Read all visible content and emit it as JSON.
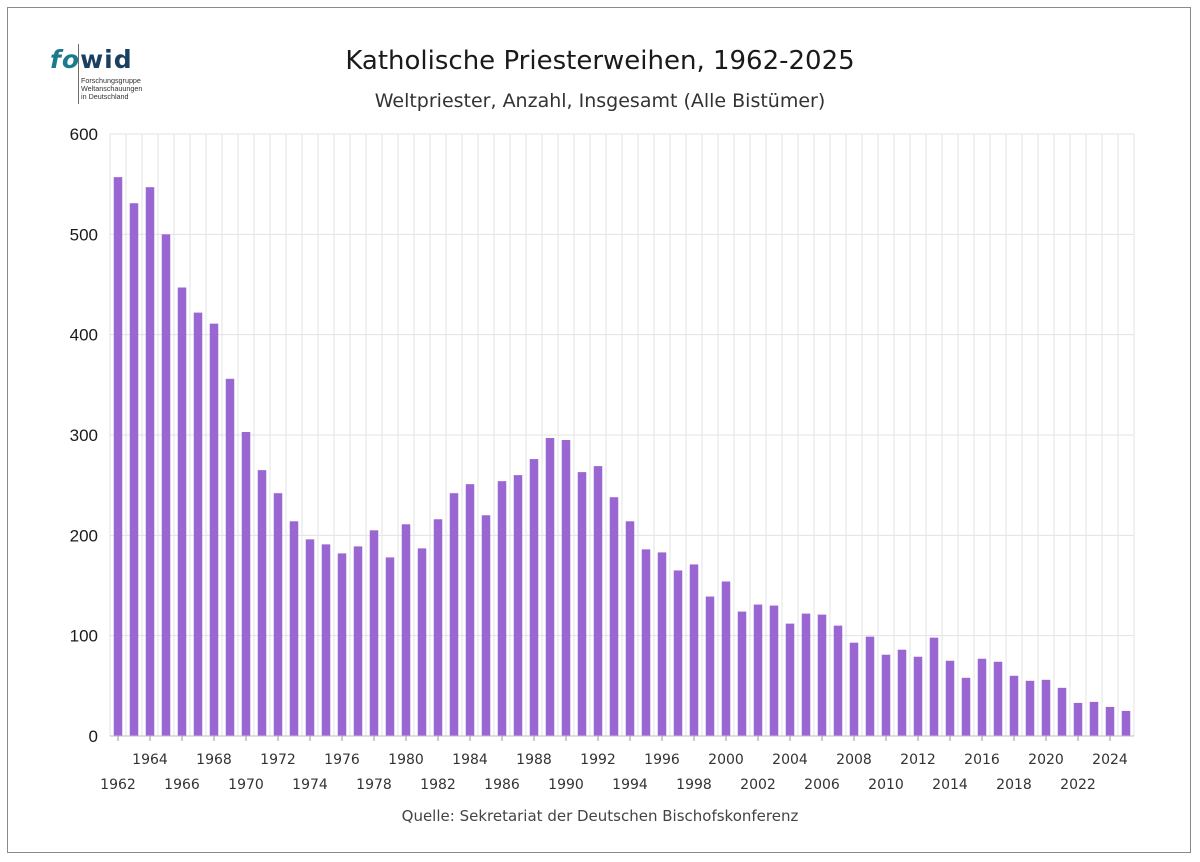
{
  "logo": {
    "word_fo": "fo",
    "word_wid": "wid",
    "line1": "Forschungsgruppe",
    "line2": "Weltanschauungen",
    "line3": "in Deutschland"
  },
  "colors": {
    "bar": "#9a66d2",
    "grid": "#e3e3e3",
    "axis": "#333333"
  },
  "chart_data": {
    "type": "bar",
    "title": "Katholische Priesterweihen, 1962-2025",
    "subtitle": "Weltpriester, Anzahl, Insgesamt (Alle Bistümer)",
    "source": "Quelle: Sekretariat der Deutschen Bischofskonferenz",
    "xlabel": "",
    "ylabel": "",
    "ylim": [
      0,
      600
    ],
    "yticks": [
      "0",
      "100",
      "200",
      "300",
      "400",
      "500",
      "600"
    ],
    "grid": true,
    "categories": [
      1962,
      1963,
      1964,
      1965,
      1966,
      1967,
      1968,
      1969,
      1970,
      1971,
      1972,
      1973,
      1974,
      1975,
      1976,
      1977,
      1978,
      1979,
      1980,
      1981,
      1982,
      1983,
      1984,
      1985,
      1986,
      1987,
      1988,
      1989,
      1990,
      1991,
      1992,
      1993,
      1994,
      1995,
      1996,
      1997,
      1998,
      1999,
      2000,
      2001,
      2002,
      2003,
      2004,
      2005,
      2006,
      2007,
      2008,
      2009,
      2010,
      2011,
      2012,
      2013,
      2014,
      2015,
      2016,
      2017,
      2018,
      2019,
      2020,
      2021,
      2022,
      2023,
      2024,
      2025
    ],
    "values": [
      557,
      531,
      547,
      500,
      447,
      422,
      411,
      356,
      303,
      265,
      242,
      214,
      196,
      191,
      182,
      189,
      205,
      178,
      211,
      187,
      216,
      242,
      251,
      220,
      254,
      260,
      276,
      297,
      295,
      263,
      269,
      238,
      214,
      186,
      183,
      165,
      171,
      139,
      154,
      124,
      131,
      130,
      112,
      122,
      121,
      110,
      93,
      99,
      81,
      86,
      79,
      98,
      75,
      58,
      77,
      74,
      60,
      55,
      56,
      48,
      33,
      34,
      29,
      25
    ],
    "xtick_labels_lower": [
      "1962",
      "1966",
      "1970",
      "1974",
      "1978",
      "1982",
      "1986",
      "1990",
      "1994",
      "1998",
      "2002",
      "2006",
      "2010",
      "2014",
      "2018",
      "2022"
    ],
    "xtick_labels_upper": [
      "1964",
      "1968",
      "1972",
      "1976",
      "1980",
      "1984",
      "1988",
      "1992",
      "1996",
      "2000",
      "2004",
      "2008",
      "2012",
      "2016",
      "2020",
      "2024"
    ]
  }
}
